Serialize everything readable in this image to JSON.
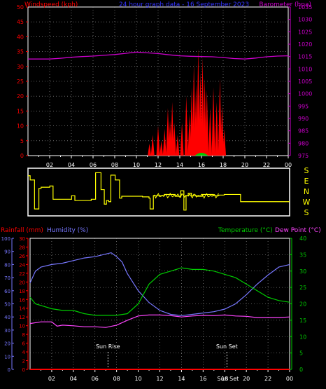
{
  "chart_data": [
    {
      "type": "bar",
      "title": "24 hour graph data - 16 September 2023",
      "ylabel": "Windspeed (kph)",
      "y2label": "Barometer (hpa)",
      "ylim": [
        0,
        50
      ],
      "y2lim": [
        975,
        1035
      ],
      "yticks": [
        0,
        5,
        10,
        15,
        20,
        25,
        30,
        35,
        40,
        45,
        50
      ],
      "y2ticks": [
        975,
        980,
        985,
        990,
        995,
        1000,
        1005,
        1010,
        1015,
        1020,
        1025,
        1030,
        1035
      ],
      "xticks": [
        "02",
        "04",
        "06",
        "08",
        "10",
        "12",
        "14",
        "16",
        "18",
        "20",
        "22",
        "00"
      ],
      "grid": true,
      "colors": {
        "windspeed": "#ff0000",
        "gust": "#00cc00",
        "barometer": "#cc00cc"
      },
      "series": [
        {
          "name": "Windspeed (kph)",
          "x": [
            11.2,
            11.5,
            12.0,
            12.3,
            12.6,
            12.9,
            13.1,
            13.3,
            13.5,
            13.8,
            14.2,
            14.6,
            14.9,
            15.1,
            15.3,
            15.5,
            15.7,
            15.9,
            16.1,
            16.3,
            16.5,
            16.8,
            17.1,
            17.4,
            17.7,
            17.9,
            18.1
          ],
          "values": [
            4,
            7,
            10,
            5,
            9,
            16,
            12,
            18,
            11,
            7,
            11,
            20,
            14,
            23,
            31,
            24,
            36,
            28,
            33,
            26,
            22,
            16,
            23,
            18,
            26,
            17,
            9
          ]
        },
        {
          "name": "Barometer (hpa)",
          "x": [
            0,
            1,
            2,
            3,
            4,
            5,
            6,
            7,
            8,
            9,
            10,
            11,
            12,
            13,
            14,
            15,
            16,
            17,
            18,
            19,
            20,
            21,
            22,
            23,
            24
          ],
          "values": [
            1014,
            1014,
            1014,
            1014.3,
            1014.7,
            1015,
            1015.2,
            1015.5,
            1015.8,
            1016.3,
            1016.8,
            1016.5,
            1016.2,
            1015.7,
            1015.3,
            1015.1,
            1015,
            1014.9,
            1014.6,
            1014.2,
            1014,
            1014.4,
            1014.9,
            1015.2,
            1015.3
          ]
        }
      ]
    },
    {
      "type": "line",
      "title": "",
      "yticks_right": [
        "S",
        "E",
        "N",
        "W",
        "S"
      ],
      "xlim": [
        0,
        24
      ],
      "series": [
        {
          "name": "",
          "x": [
            0,
            0.2,
            0.6,
            0.8,
            1.0,
            1.2,
            2.0,
            2.3,
            4.0,
            4.3,
            5.8,
            6.2,
            6.7,
            7.0,
            7.2,
            7.4,
            7.6,
            8.0,
            8.4,
            8.6,
            9.5,
            10.5,
            11.1,
            11.2,
            11.5,
            12.5,
            13.5,
            14.0,
            14.3,
            14.5,
            14.7,
            15.0,
            15.5,
            16.0,
            17.0,
            17.5,
            18.0,
            19.5,
            21.0,
            22.0,
            24.0
          ],
          "values": [
            315,
            280,
            40,
            40,
            210,
            220,
            230,
            120,
            150,
            110,
            120,
            340,
            200,
            80,
            110,
            100,
            320,
            280,
            130,
            145,
            145,
            140,
            130,
            40,
            150,
            160,
            145,
            190,
            30,
            150,
            170,
            150,
            145,
            160,
            150,
            155,
            160,
            100,
            100,
            100,
            100
          ]
        }
      ]
    },
    {
      "type": "line",
      "title": "",
      "ylabel": "Rainfall (mm)",
      "y2label": "Humidity (%)",
      "y3label": "Temperature (°C)",
      "y4label": "Dew Point (°C)",
      "rain_ticks": [
        0,
        2,
        4,
        6,
        8,
        10,
        12,
        14,
        16,
        18,
        20,
        22,
        24,
        26,
        28,
        30
      ],
      "humidity_ticks": [
        0,
        10,
        20,
        30,
        40,
        50,
        60,
        70,
        80,
        90,
        100
      ],
      "temp_ticks": [
        0,
        5,
        10,
        15,
        20,
        25,
        30,
        35,
        40
      ],
      "xticks": [
        "02",
        "04",
        "06",
        "08",
        "10",
        "12",
        "14",
        "16",
        "18",
        "20",
        "22",
        "00"
      ],
      "annotations": [
        "Sun Rise",
        "Sun Set",
        "Sun Set"
      ],
      "grid": true,
      "colors": {
        "rainfall": "#ff0000",
        "humidity": "#7777ff",
        "temperature": "#00cc00",
        "dewpoint": "#ff44ff"
      },
      "series": [
        {
          "name": "Humidity (%)",
          "x": [
            0,
            0.5,
            1,
            2,
            3,
            4,
            5,
            6,
            7,
            7.5,
            8,
            8.5,
            9,
            10,
            11,
            12,
            13,
            14,
            15,
            16,
            17,
            18,
            19,
            20,
            21,
            22,
            23,
            24
          ],
          "values": [
            66,
            75,
            78,
            80,
            81,
            83,
            85,
            86,
            88,
            89,
            86,
            82,
            73,
            60,
            51,
            45,
            42,
            41,
            42,
            43,
            44,
            46,
            50,
            57,
            65,
            72,
            78,
            80
          ]
        },
        {
          "name": "Temperature (°C)",
          "x": [
            0,
            0.5,
            1,
            2,
            3,
            4,
            5,
            6,
            7,
            8,
            9,
            10,
            11,
            12,
            13,
            14,
            15,
            16,
            17,
            18,
            19,
            20,
            21,
            22,
            23,
            24
          ],
          "values": [
            22,
            20,
            19.5,
            18.5,
            18,
            18,
            17,
            16.5,
            16.5,
            16.5,
            17,
            20,
            26,
            29,
            30,
            31,
            30.5,
            30.5,
            30,
            29,
            28,
            26,
            24,
            22,
            21,
            20.5
          ]
        },
        {
          "name": "Dew Point (°C)",
          "x": [
            0,
            1,
            2,
            2.5,
            3,
            4,
            5,
            6,
            7,
            8,
            9,
            10,
            11,
            12,
            13,
            14,
            15,
            16,
            17,
            18,
            19,
            20,
            21,
            22,
            23,
            24
          ],
          "values": [
            14,
            14.5,
            14.5,
            13.2,
            13.5,
            13.3,
            13,
            13,
            12.8,
            13.5,
            15,
            16.3,
            16.6,
            16.6,
            16.4,
            16,
            16.3,
            16.5,
            16.4,
            16.6,
            16.3,
            16.2,
            15.8,
            15.8,
            15.8,
            16
          ]
        },
        {
          "name": "Rainfall (mm)",
          "x": [
            0,
            24
          ],
          "values": [
            0,
            0
          ]
        }
      ]
    }
  ]
}
